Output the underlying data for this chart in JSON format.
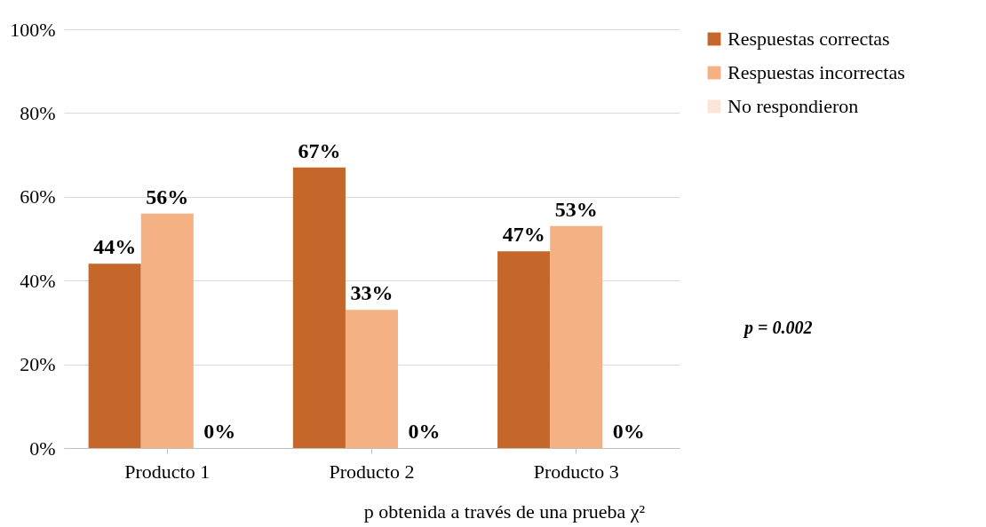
{
  "chart_data": {
    "type": "bar",
    "categories": [
      "Producto 1",
      "Producto 2",
      "Producto 3"
    ],
    "series": [
      {
        "name": "Respuestas correctas",
        "color": "#c5662a",
        "values": [
          44,
          67,
          47
        ]
      },
      {
        "name": "Respuestas incorrectas",
        "color": "#f4b183",
        "values": [
          56,
          33,
          53
        ]
      },
      {
        "name": "No respondieron",
        "color": "#fbe5d6",
        "values": [
          0,
          0,
          0
        ]
      }
    ],
    "ylim": [
      0,
      100
    ],
    "yticks": [
      {
        "value": 0,
        "label": "0%"
      },
      {
        "value": 20,
        "label": "20%"
      },
      {
        "value": 40,
        "label": "40%"
      },
      {
        "value": 60,
        "label": "60%"
      },
      {
        "value": 80,
        "label": "80%"
      },
      {
        "value": 100,
        "label": "100%"
      }
    ],
    "grid": "y",
    "legend": "right",
    "value_labels": [
      [
        "44%",
        "67%",
        "47%"
      ],
      [
        "56%",
        "33%",
        "53%"
      ],
      [
        "0%",
        "0%",
        "0%"
      ]
    ],
    "annotations": [
      "p = 0.002",
      "p obtenida a través de una prueba χ²"
    ]
  }
}
